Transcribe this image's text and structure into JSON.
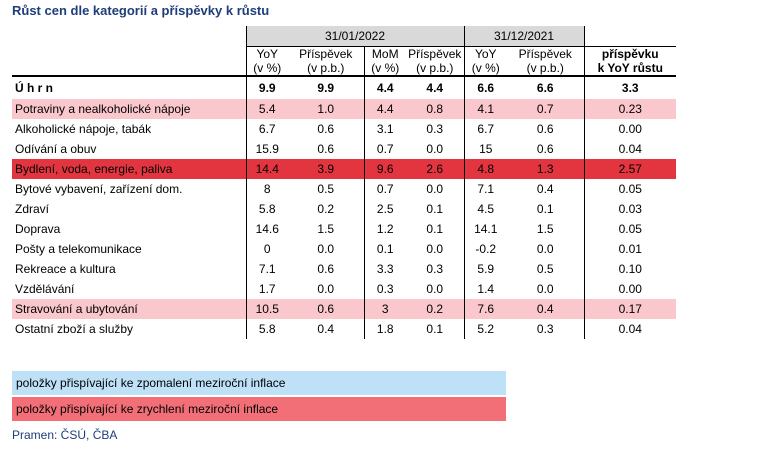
{
  "title": "Růst cen dle kategorií a příspěvky k růstu",
  "dates": {
    "d1": "31/01/2022",
    "d2": "31/12/2021"
  },
  "headers": {
    "yoy": "YoY",
    "yoy_unit": "(v %)",
    "contrib": "Příspěvek",
    "contrib_unit": "(v p.b.)",
    "mom": "MoM",
    "mom_unit": "(v %)",
    "contrib_yoy_1": "příspěvku",
    "contrib_yoy_2": "k YoY růstu"
  },
  "total": {
    "label": "Ú h r n",
    "v": [
      "9.9",
      "9.9",
      "4.4",
      "4.4",
      "6.6",
      "6.6",
      "3.3"
    ]
  },
  "rows": [
    {
      "label": "Potraviny a nealkoholické nápoje",
      "v": [
        "5.4",
        "1.0",
        "4.4",
        "0.8",
        "4.1",
        "0.7",
        "0.23"
      ],
      "hl": "pink"
    },
    {
      "label": "Alkoholické nápoje, tabák",
      "v": [
        "6.7",
        "0.6",
        "3.1",
        "0.3",
        "6.7",
        "0.6",
        "0.00"
      ],
      "hl": ""
    },
    {
      "label": "Odívání a obuv",
      "v": [
        "15.9",
        "0.6",
        "0.7",
        "0.0",
        "15",
        "0.6",
        "0.04"
      ],
      "hl": ""
    },
    {
      "label": "Bydlení, voda, energie, paliva",
      "v": [
        "14.4",
        "3.9",
        "9.6",
        "2.6",
        "4.8",
        "1.3",
        "2.57"
      ],
      "hl": "red"
    },
    {
      "label": "Bytové vybavení, zařízení dom.",
      "v": [
        "8",
        "0.5",
        "0.7",
        "0.0",
        "7.1",
        "0.4",
        "0.05"
      ],
      "hl": ""
    },
    {
      "label": "Zdraví",
      "v": [
        "5.8",
        "0.2",
        "2.5",
        "0.1",
        "4.5",
        "0.1",
        "0.03"
      ],
      "hl": ""
    },
    {
      "label": "Doprava",
      "v": [
        "14.6",
        "1.5",
        "1.2",
        "0.1",
        "14.1",
        "1.5",
        "0.05"
      ],
      "hl": ""
    },
    {
      "label": "Pošty a telekomunikace",
      "v": [
        "0",
        "0.0",
        "0.1",
        "0.0",
        "-0.2",
        "0.0",
        "0.01"
      ],
      "hl": ""
    },
    {
      "label": "Rekreace a kultura",
      "v": [
        "7.1",
        "0.6",
        "3.3",
        "0.3",
        "5.9",
        "0.5",
        "0.10"
      ],
      "hl": ""
    },
    {
      "label": "Vzdělávání",
      "v": [
        "1.7",
        "0.0",
        "0.3",
        "0.0",
        "1.4",
        "0.0",
        "0.00"
      ],
      "hl": ""
    },
    {
      "label": "Stravování a ubytování",
      "v": [
        "10.5",
        "0.6",
        "3",
        "0.2",
        "7.6",
        "0.4",
        "0.17"
      ],
      "hl": "pink"
    },
    {
      "label": "Ostatní zboží a služby",
      "v": [
        "5.8",
        "0.4",
        "1.8",
        "0.1",
        "5.2",
        "0.3",
        "0.04"
      ],
      "hl": ""
    }
  ],
  "legend": {
    "slowing": "položky přispívající ke zpomalení meziroční inflace",
    "accelerating": "položky přispívající ke zrychlení meziroční inflace"
  },
  "source": "Pramen: ČSÚ, ČBA",
  "colors": {
    "pink": "#f9c7cc",
    "red": "#e2353f",
    "blue": "#bfe1f7",
    "red_legend": "#f26f78",
    "gray": "#d9d9d9"
  }
}
